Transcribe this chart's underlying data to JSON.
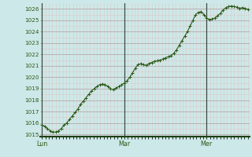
{
  "background_color": "#cde8e8",
  "grid_color_major": "#b8a8a8",
  "grid_color_minor": "#ddc8c8",
  "line_color": "#2a5a18",
  "marker_color": "#2a5a18",
  "tick_label_color": "#2a5a18",
  "axis_color": "#1a4010",
  "vline_color": "#404840",
  "ylim": [
    1014.8,
    1026.5
  ],
  "yticks": [
    1015,
    1016,
    1017,
    1018,
    1019,
    1020,
    1021,
    1022,
    1023,
    1024,
    1025,
    1026
  ],
  "day_positions": [
    0,
    24,
    48
  ],
  "day_labels": [
    "Lun",
    "Mar",
    "Mer"
  ],
  "xlim": [
    -0.5,
    60.5
  ],
  "values": [
    1015.8,
    1015.7,
    1015.5,
    1015.3,
    1015.2,
    1015.2,
    1015.3,
    1015.5,
    1015.8,
    1016.0,
    1016.3,
    1016.6,
    1016.9,
    1017.2,
    1017.6,
    1017.9,
    1018.2,
    1018.5,
    1018.8,
    1019.0,
    1019.2,
    1019.35,
    1019.4,
    1019.35,
    1019.2,
    1019.0,
    1018.9,
    1019.05,
    1019.2,
    1019.35,
    1019.5,
    1019.7,
    1020.0,
    1020.4,
    1020.8,
    1021.1,
    1021.2,
    1021.1,
    1021.05,
    1021.2,
    1021.3,
    1021.4,
    1021.45,
    1021.5,
    1021.6,
    1021.7,
    1021.8,
    1021.9,
    1022.1,
    1022.4,
    1022.8,
    1023.2,
    1023.6,
    1024.0,
    1024.5,
    1025.0,
    1025.5,
    1025.7,
    1025.75,
    1025.5,
    1025.2,
    1025.05,
    1025.1,
    1025.2,
    1025.4,
    1025.6,
    1025.9,
    1026.1,
    1026.2,
    1026.25,
    1026.2,
    1026.15,
    1026.05,
    1026.1,
    1026.05,
    1025.95
  ],
  "n_points": 76,
  "total_hours": 60
}
